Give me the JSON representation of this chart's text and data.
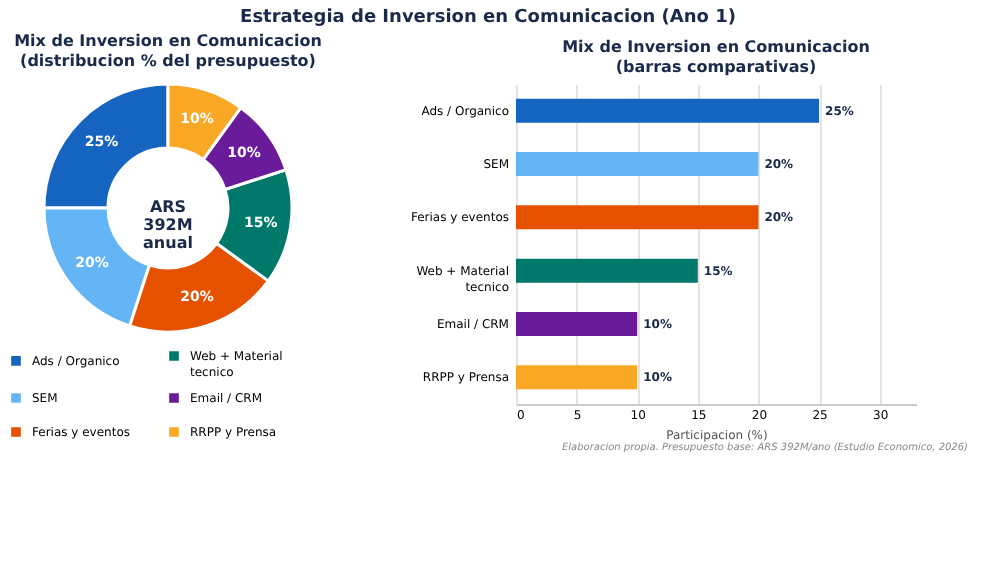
{
  "chart_data": [
    {
      "type": "other",
      "title": "Estrategia de Inversion en Comunicacion (Ano 1)",
      "annotations": [
        "Elaboracion propia. Presupuesto base: ARS 392M/ano (Estudio Economico, 2026)"
      ]
    },
    {
      "type": "donut",
      "title": "Mix de Inversion en Comunicacion\n(distribucion % del presupuesto)",
      "categories": [
        "Ads / Organico",
        "SEM",
        "Ferias y eventos",
        "Web + Material tecnico",
        "Email / CRM",
        "RRPP y Prensa"
      ],
      "values": [
        25,
        20,
        20,
        15,
        10,
        10
      ],
      "colors": [
        "#1565c0",
        "#64b5f6",
        "#e65100",
        "#00796b",
        "#6a1b9a",
        "#f9a825"
      ],
      "value_labels": [
        "25%",
        "20%",
        "20%",
        "15%",
        "10%",
        "10%"
      ],
      "annotations": [
        "ARS\n392M\nanual"
      ],
      "legend": "bottom"
    },
    {
      "type": "bar",
      "orientation": "horizontal",
      "title": "Mix de Inversion en Comunicacion\n(barras comparativas)",
      "categories": [
        "Ads / Organico",
        "SEM",
        "Ferias y eventos",
        "Web + Material tecnico",
        "Email / CRM",
        "RRPP y Prensa"
      ],
      "values": [
        25,
        20,
        20,
        15,
        10,
        10
      ],
      "colors": [
        "#1565c0",
        "#64b5f6",
        "#e65100",
        "#00796b",
        "#6a1b9a",
        "#f9a825"
      ],
      "value_labels": [
        "25%",
        "20%",
        "20%",
        "15%",
        "10%",
        "10%"
      ],
      "xlabel": "Participacion (%)",
      "xlim": [
        0,
        33
      ],
      "xticks": [
        0,
        5,
        10,
        15,
        20,
        25,
        30
      ],
      "grid": "x"
    }
  ]
}
